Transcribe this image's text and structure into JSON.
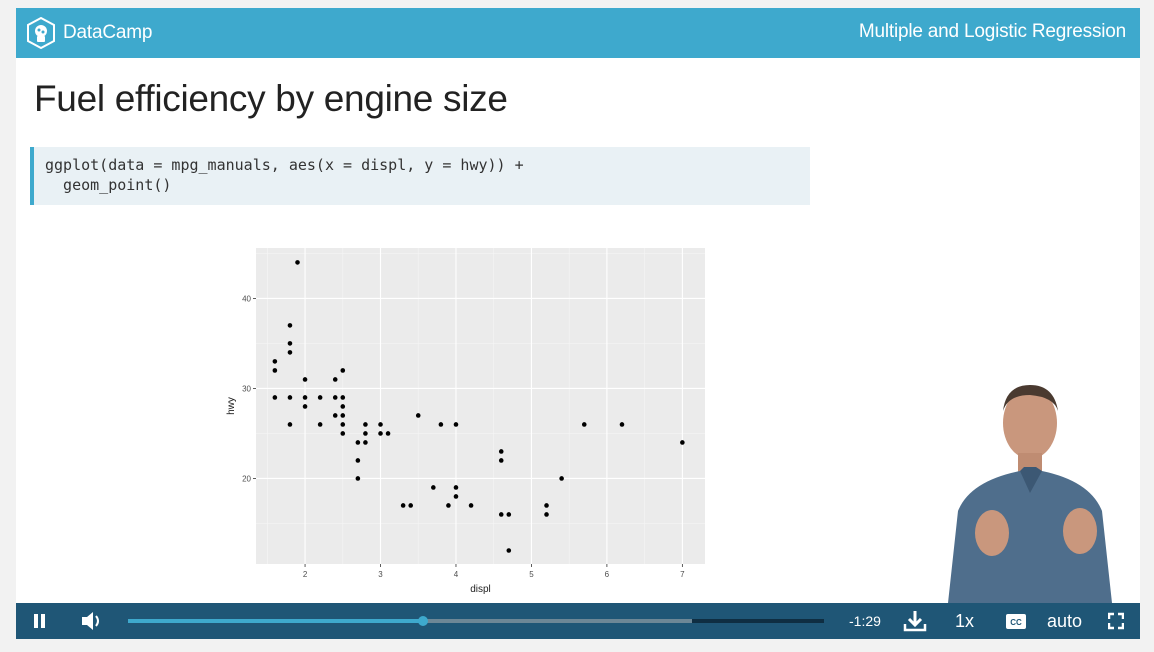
{
  "header": {
    "brand": "DataCamp",
    "course_title": "Multiple and Logistic Regression"
  },
  "slide": {
    "title": "Fuel efficiency by engine size",
    "code_lines": [
      "ggplot(data = mpg_manuals, aes(x = displ, y = hwy)) +",
      "  geom_point()"
    ]
  },
  "chart_data": {
    "type": "scatter",
    "xlabel": "displ",
    "ylabel": "hwy",
    "xlim": [
      1.35,
      7.3
    ],
    "ylim": [
      10.5,
      45.6
    ],
    "x_ticks": [
      2,
      3,
      4,
      5,
      6,
      7
    ],
    "y_ticks": [
      20,
      30,
      40
    ],
    "grid": true,
    "background": "#ebebeb",
    "points": [
      [
        1.9,
        44
      ],
      [
        1.8,
        37
      ],
      [
        1.8,
        35
      ],
      [
        1.8,
        34
      ],
      [
        1.6,
        33
      ],
      [
        1.6,
        32
      ],
      [
        2.5,
        32
      ],
      [
        2.0,
        31
      ],
      [
        2.4,
        31
      ],
      [
        1.6,
        29
      ],
      [
        1.8,
        29
      ],
      [
        2.0,
        29
      ],
      [
        2.2,
        29
      ],
      [
        2.4,
        29
      ],
      [
        2.5,
        29
      ],
      [
        2.0,
        28
      ],
      [
        2.5,
        28
      ],
      [
        2.4,
        27
      ],
      [
        2.5,
        27
      ],
      [
        3.5,
        27
      ],
      [
        1.8,
        26
      ],
      [
        2.2,
        26
      ],
      [
        2.5,
        26
      ],
      [
        2.8,
        26
      ],
      [
        3.0,
        26
      ],
      [
        3.8,
        26
      ],
      [
        4.0,
        26
      ],
      [
        5.7,
        26
      ],
      [
        6.2,
        26
      ],
      [
        2.5,
        25
      ],
      [
        2.8,
        25
      ],
      [
        3.0,
        25
      ],
      [
        3.1,
        25
      ],
      [
        2.7,
        24
      ],
      [
        2.8,
        24
      ],
      [
        7.0,
        24
      ],
      [
        4.6,
        23
      ],
      [
        2.7,
        22
      ],
      [
        4.6,
        22
      ],
      [
        2.7,
        20
      ],
      [
        5.4,
        20
      ],
      [
        3.7,
        19
      ],
      [
        4.0,
        19
      ],
      [
        4.0,
        18
      ],
      [
        3.3,
        17
      ],
      [
        3.4,
        17
      ],
      [
        3.9,
        17
      ],
      [
        4.2,
        17
      ],
      [
        5.2,
        17
      ],
      [
        4.6,
        16
      ],
      [
        4.7,
        16
      ],
      [
        5.2,
        16
      ],
      [
        4.7,
        12
      ]
    ]
  },
  "player": {
    "time_remaining": "-1:29",
    "playback_rate": "1x",
    "quality": "auto",
    "progress_fraction": 0.424,
    "buffered_fraction": 0.81
  },
  "icons": {
    "logo": "datacamp-logo-icon",
    "pause": "pause-icon",
    "volume": "volume-icon",
    "download": "download-icon",
    "captions": "closed-captions-icon",
    "fullscreen": "fullscreen-icon"
  }
}
